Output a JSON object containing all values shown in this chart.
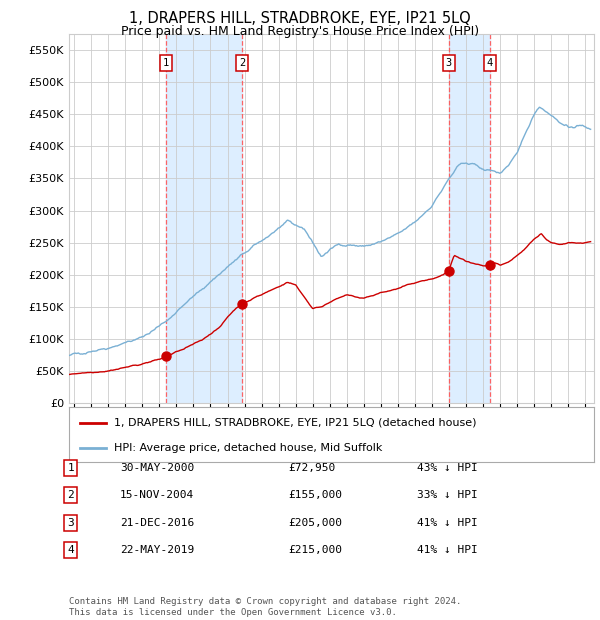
{
  "title": "1, DRAPERS HILL, STRADBROKE, EYE, IP21 5LQ",
  "subtitle": "Price paid vs. HM Land Registry's House Price Index (HPI)",
  "legend_property": "1, DRAPERS HILL, STRADBROKE, EYE, IP21 5LQ (detached house)",
  "legend_hpi": "HPI: Average price, detached house, Mid Suffolk",
  "footer": "Contains HM Land Registry data © Crown copyright and database right 2024.\nThis data is licensed under the Open Government Licence v3.0.",
  "sales": [
    {
      "label": "1",
      "date": "30-MAY-2000",
      "price": 72950,
      "pct": "43% ↓ HPI",
      "year_x": 2000.41
    },
    {
      "label": "2",
      "date": "15-NOV-2004",
      "price": 155000,
      "pct": "33% ↓ HPI",
      "year_x": 2004.87
    },
    {
      "label": "3",
      "date": "21-DEC-2016",
      "price": 205000,
      "pct": "41% ↓ HPI",
      "year_x": 2016.97
    },
    {
      "label": "4",
      "date": "22-MAY-2019",
      "price": 215000,
      "pct": "41% ↓ HPI",
      "year_x": 2019.39
    }
  ],
  "property_color": "#cc0000",
  "hpi_color": "#7ab0d4",
  "background_color": "#ffffff",
  "shaded_color": "#ddeeff",
  "grid_color": "#cccccc",
  "vline_color": "#ff5555",
  "ylim": [
    0,
    575000
  ],
  "yticks": [
    0,
    50000,
    100000,
    150000,
    200000,
    250000,
    300000,
    350000,
    400000,
    450000,
    500000,
    550000
  ],
  "xlim_start": 1994.7,
  "xlim_end": 2025.5,
  "table_data": [
    [
      "1",
      "30-MAY-2000",
      "£72,950",
      "43% ↓ HPI"
    ],
    [
      "2",
      "15-NOV-2004",
      "£155,000",
      "33% ↓ HPI"
    ],
    [
      "3",
      "21-DEC-2016",
      "£205,000",
      "41% ↓ HPI"
    ],
    [
      "4",
      "22-MAY-2019",
      "£215,000",
      "41% ↓ HPI"
    ]
  ]
}
